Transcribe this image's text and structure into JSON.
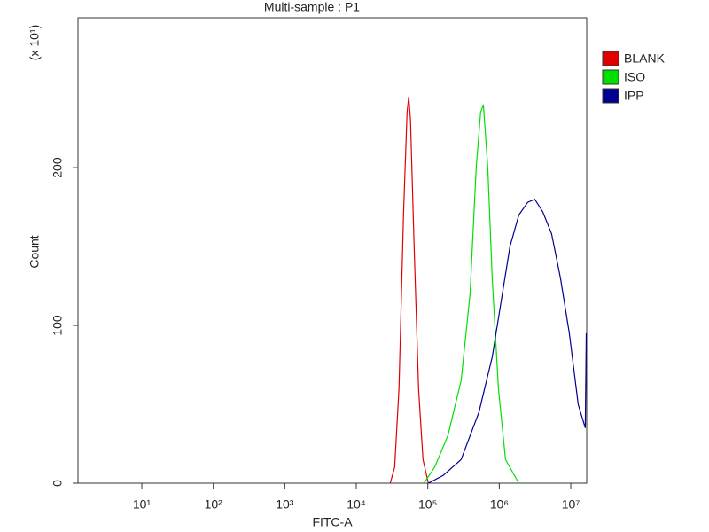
{
  "chart_data": {
    "type": "line",
    "title": "Multi-sample : P1",
    "x_label": "FITC-A",
    "y_label": "Count",
    "y_multiplier": "(x 10¹)",
    "x_log": true,
    "grid": false,
    "legend": "right",
    "xlim": [
      1.28,
      16700000
    ],
    "ylim": [
      0,
      295
    ],
    "xticks": [
      {
        "value": 10,
        "label": "10¹"
      },
      {
        "value": 100,
        "label": "10²"
      },
      {
        "value": 1000,
        "label": "10³"
      },
      {
        "value": 10000,
        "label": "10⁴"
      },
      {
        "value": 100000,
        "label": "10⁵"
      },
      {
        "value": 1000000,
        "label": "10⁶"
      },
      {
        "value": 10000000,
        "label": "10⁷"
      }
    ],
    "yticks": [
      0,
      100,
      200
    ],
    "series": [
      {
        "name": "BLANK",
        "color": "#e00000",
        "x": [
          29800,
          34400,
          39600,
          45700,
          51300,
          54200,
          57400,
          64400,
          74300,
          85700,
          101600
        ],
        "values": [
          0,
          10,
          60,
          170,
          235,
          245,
          230,
          150,
          60,
          15,
          0
        ]
      },
      {
        "name": "ISO",
        "color": "#00e000",
        "x": [
          88100,
          124200,
          190700,
          292900,
          389800,
          475700,
          548500,
          598000,
          690000,
          796000,
          973000,
          1222000,
          1875000
        ],
        "values": [
          0,
          10,
          30,
          65,
          120,
          200,
          235,
          240,
          200,
          130,
          60,
          15,
          0
        ]
      },
      {
        "name": "IPP",
        "color": "#000090",
        "x": [
          101600,
          165000,
          292900,
          519000,
          796000,
          1059000,
          1409000,
          1875000,
          2495000,
          3133000,
          4053000,
          5395000,
          7180000,
          9550000,
          12700000,
          15970000,
          16440000
        ],
        "values": [
          0,
          5,
          15,
          45,
          80,
          115,
          150,
          170,
          178,
          180,
          172,
          158,
          130,
          95,
          50,
          35,
          95
        ]
      }
    ]
  }
}
